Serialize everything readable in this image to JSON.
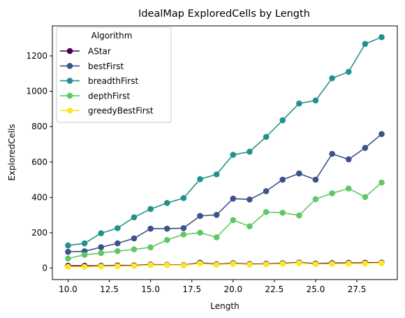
{
  "chart_data": {
    "type": "line",
    "title": "IdealMap ExploredCells by Length",
    "xlabel": "Length",
    "ylabel": "ExploredCells",
    "xlim": [
      9.05,
      29.95
    ],
    "ylim": [
      -65,
      1370
    ],
    "xticks": [
      10.0,
      12.5,
      15.0,
      17.5,
      20.0,
      22.5,
      25.0,
      27.5
    ],
    "xtick_labels": [
      "10.0",
      "12.5",
      "15.0",
      "17.5",
      "20.0",
      "22.5",
      "25.0",
      "27.5"
    ],
    "yticks": [
      0,
      200,
      400,
      600,
      800,
      1000,
      1200
    ],
    "ytick_labels": [
      "0",
      "200",
      "400",
      "600",
      "800",
      "1000",
      "1200"
    ],
    "grid": false,
    "legend": {
      "title": "Algorithm",
      "placement": "top-left"
    },
    "x": [
      10,
      11,
      12,
      13,
      14,
      15,
      16,
      17,
      18,
      19,
      20,
      21,
      22,
      23,
      24,
      25,
      26,
      27,
      28,
      29
    ],
    "series": [
      {
        "name": "AStar",
        "color": "#440154",
        "values": [
          13,
          13,
          13,
          15,
          15,
          20,
          19,
          17,
          30,
          22,
          27,
          23,
          24,
          27,
          31,
          25,
          28,
          29,
          30,
          31
        ]
      },
      {
        "name": "bestFirst",
        "color": "#3b528b",
        "values": [
          92,
          95,
          118,
          140,
          168,
          223,
          223,
          226,
          295,
          301,
          393,
          388,
          435,
          500,
          535,
          500,
          646,
          615,
          680,
          758
        ]
      },
      {
        "name": "breadthFirst",
        "color": "#21918c",
        "values": [
          128,
          140,
          197,
          226,
          287,
          334,
          368,
          396,
          503,
          530,
          641,
          658,
          742,
          836,
          931,
          948,
          1074,
          1110,
          1268,
          1306
        ]
      },
      {
        "name": "depthFirst",
        "color": "#5ec962",
        "values": [
          54,
          75,
          85,
          96,
          106,
          117,
          159,
          190,
          200,
          174,
          271,
          236,
          317,
          313,
          298,
          390,
          423,
          450,
          402,
          484
        ]
      },
      {
        "name": "greedyBestFirst",
        "color": "#fde725",
        "values": [
          7,
          7,
          9,
          11,
          12,
          17,
          17,
          15,
          26,
          19,
          24,
          20,
          21,
          24,
          28,
          22,
          24,
          25,
          26,
          28
        ]
      }
    ]
  }
}
